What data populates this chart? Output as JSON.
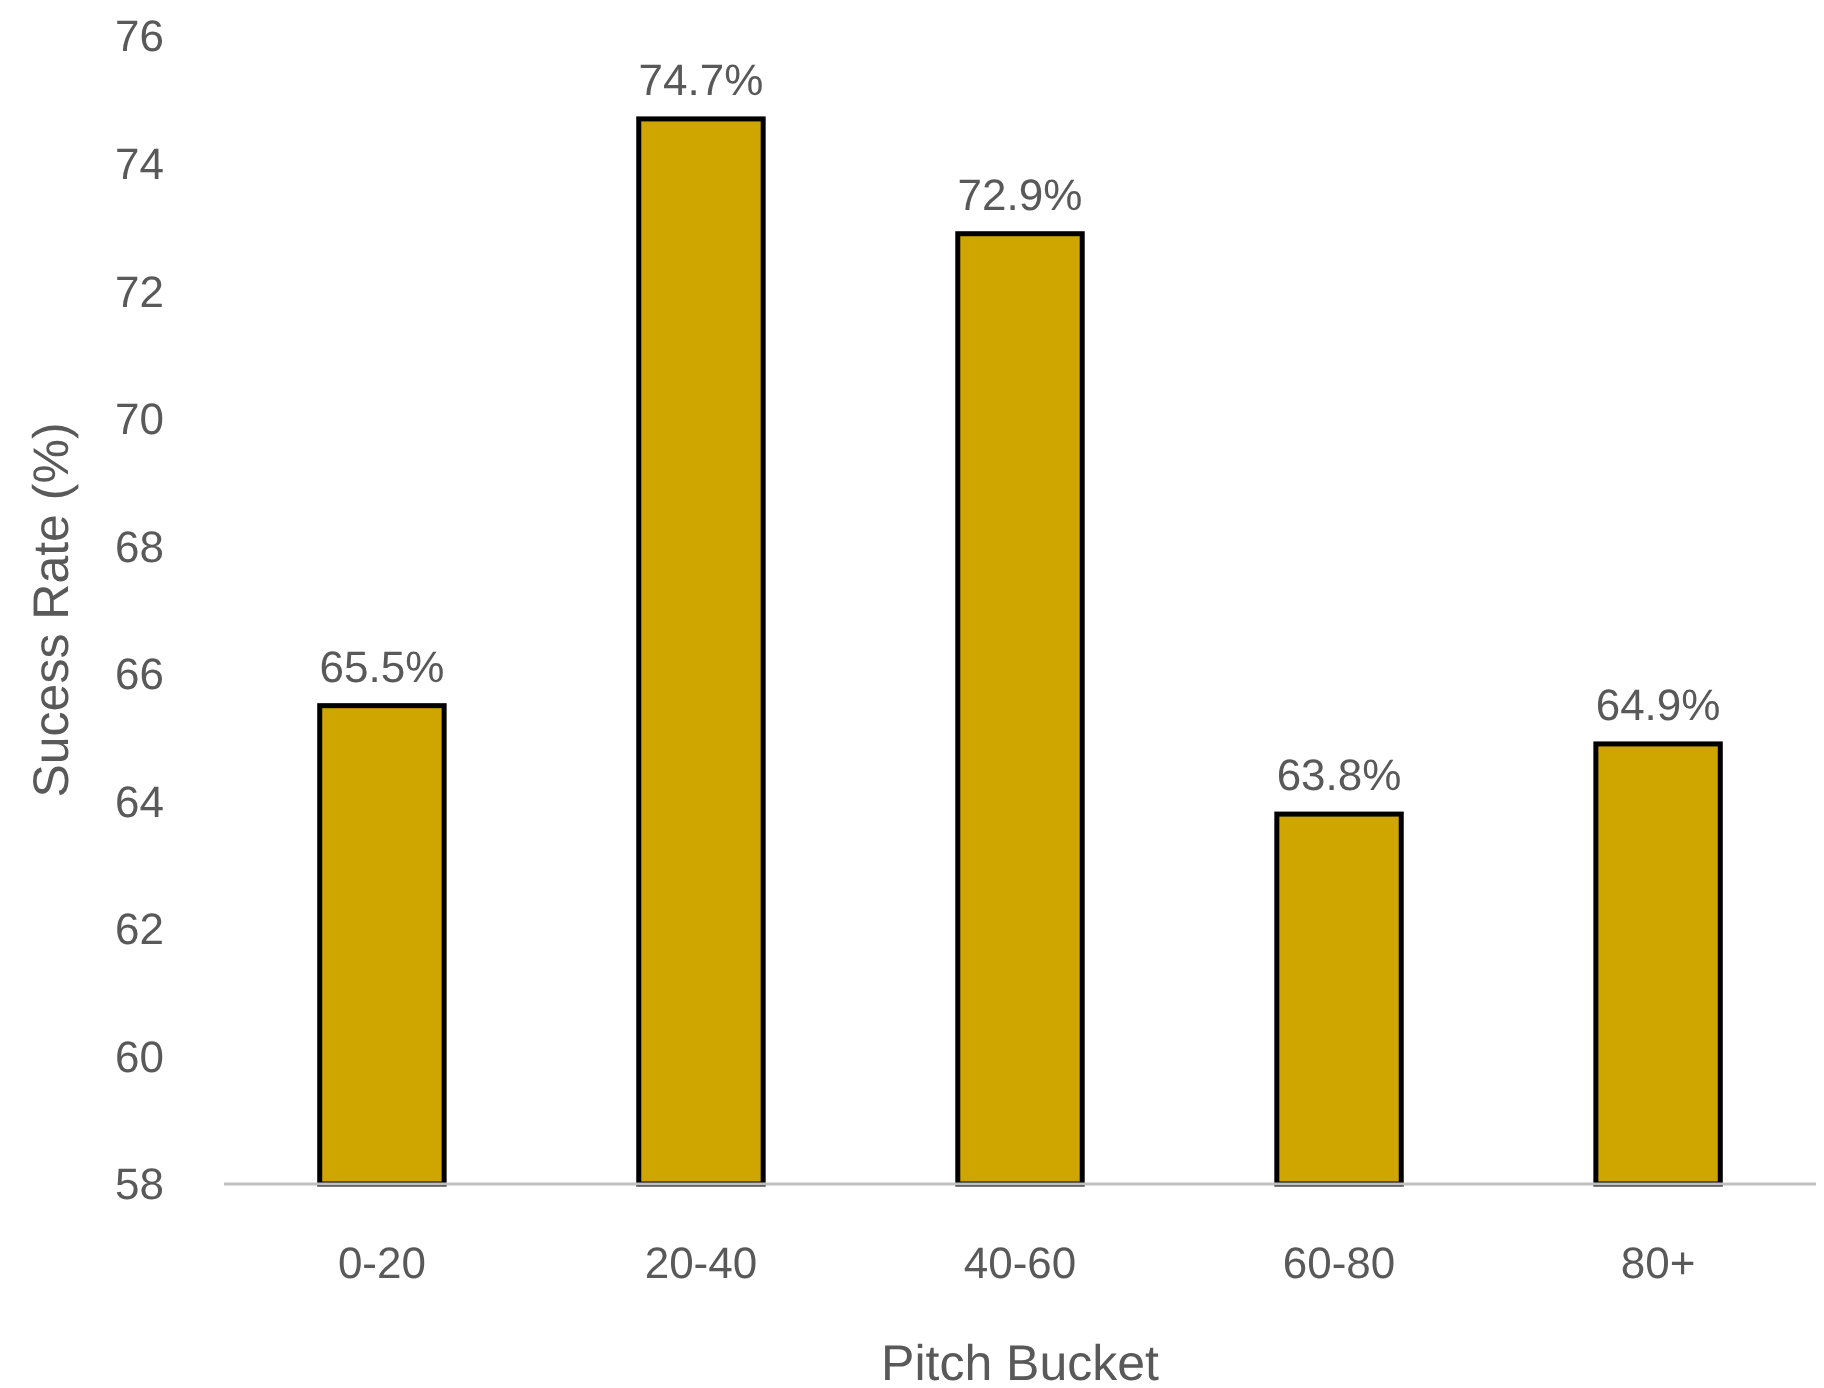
{
  "chart_data": {
    "type": "bar",
    "xlabel": "Pitch Bucket",
    "ylabel": "Sucess Rate (%)",
    "categories": [
      "0-20",
      "20-40",
      "40-60",
      "60-80",
      "80+"
    ],
    "values": [
      65.5,
      74.7,
      72.9,
      63.8,
      64.9
    ],
    "value_labels": [
      "65.5%",
      "74.7%",
      "72.9%",
      "63.8%",
      "64.9%"
    ],
    "color": "#cfa500",
    "ylim": [
      58,
      76
    ],
    "yticks": [
      58,
      60,
      62,
      64,
      66,
      68,
      70,
      72,
      74,
      76
    ],
    "grid": false
  }
}
